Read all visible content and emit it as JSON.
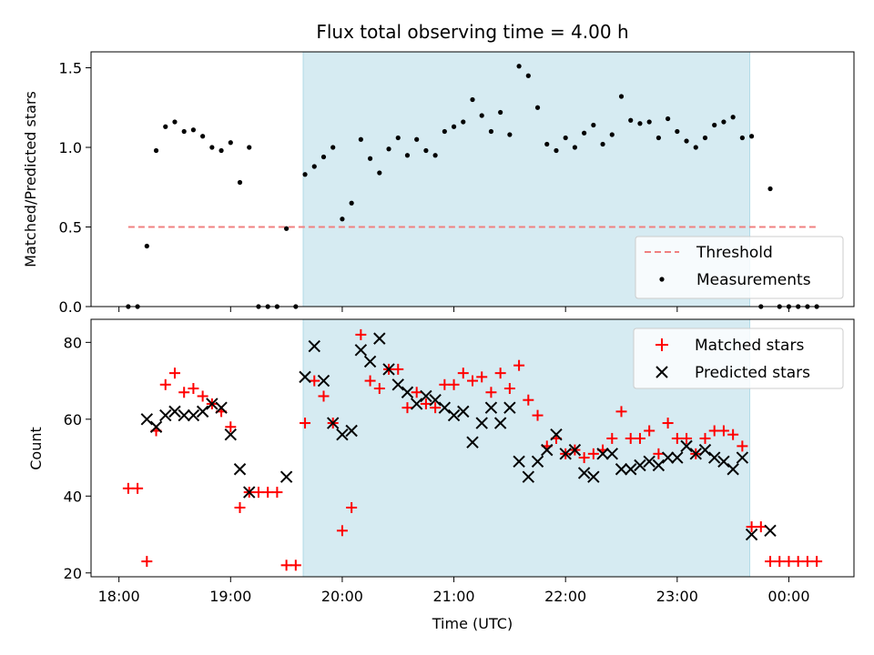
{
  "chart_data": [
    {
      "type": "scatter",
      "title": "Flux total observing time = 4.00 h",
      "xlabel": "",
      "ylabel": "Matched/Predicted stars",
      "ylim": [
        0,
        1.6
      ],
      "xlim": [
        "17:45",
        "00:35"
      ],
      "yticks": [
        0.0,
        0.5,
        1.0,
        1.5
      ],
      "ytick_labels": [
        "0.0",
        "0.5",
        "1.0",
        "1.5"
      ],
      "grid": false,
      "legend": "bottom-right",
      "shaded_region": {
        "start": "19:39",
        "end": "23:39",
        "color": "#add8e6"
      },
      "threshold": {
        "name": "Threshold",
        "value": 0.5,
        "start": "18:05",
        "end": "00:15",
        "color": "#f08080"
      },
      "series": [
        {
          "name": "Measurements",
          "color": "#000000",
          "marker": "dot",
          "x": [
            "18:05",
            "18:10",
            "18:15",
            "18:20",
            "18:25",
            "18:30",
            "18:35",
            "18:40",
            "18:45",
            "18:50",
            "18:55",
            "19:00",
            "19:05",
            "19:10",
            "19:15",
            "19:20",
            "19:25",
            "19:30",
            "19:35",
            "19:40",
            "19:45",
            "19:50",
            "19:55",
            "20:00",
            "20:05",
            "20:10",
            "20:15",
            "20:20",
            "20:25",
            "20:30",
            "20:35",
            "20:40",
            "20:45",
            "20:50",
            "20:55",
            "21:00",
            "21:05",
            "21:10",
            "21:15",
            "21:20",
            "21:25",
            "21:30",
            "21:35",
            "21:40",
            "21:45",
            "21:50",
            "21:55",
            "22:00",
            "22:05",
            "22:10",
            "22:15",
            "22:20",
            "22:25",
            "22:30",
            "22:35",
            "22:40",
            "22:45",
            "22:50",
            "22:55",
            "23:00",
            "23:05",
            "23:10",
            "23:15",
            "23:20",
            "23:25",
            "23:30",
            "23:35",
            "23:40",
            "23:45",
            "23:50",
            "23:55",
            "00:00",
            "00:05",
            "00:10",
            "00:15"
          ],
          "y": [
            0,
            0,
            0.38,
            0.98,
            1.13,
            1.16,
            1.1,
            1.11,
            1.07,
            1.0,
            0.98,
            1.03,
            0.78,
            1.0,
            0,
            0,
            0,
            0.49,
            0,
            0.83,
            0.88,
            0.94,
            1.0,
            0.55,
            0.65,
            1.05,
            0.93,
            0.84,
            0.99,
            1.06,
            0.95,
            1.05,
            0.98,
            0.95,
            1.1,
            1.13,
            1.16,
            1.3,
            1.2,
            1.1,
            1.22,
            1.08,
            1.51,
            1.45,
            1.25,
            1.02,
            0.98,
            1.06,
            1.0,
            1.09,
            1.14,
            1.02,
            1.08,
            1.32,
            1.17,
            1.15,
            1.16,
            1.06,
            1.18,
            1.1,
            1.04,
            1.0,
            1.06,
            1.14,
            1.16,
            1.19,
            1.06,
            1.07,
            0,
            0.74,
            0,
            0,
            0,
            0,
            0
          ]
        }
      ]
    },
    {
      "type": "scatter",
      "title": "",
      "xlabel": "Time (UTC)",
      "ylabel": "Count",
      "ylim": [
        19,
        86
      ],
      "xlim": [
        "17:45",
        "00:35"
      ],
      "xticks": [
        "18:00",
        "19:00",
        "20:00",
        "21:00",
        "22:00",
        "23:00",
        "00:00"
      ],
      "xtick_labels": [
        "18:00",
        "19:00",
        "20:00",
        "21:00",
        "22:00",
        "23:00",
        "00:00"
      ],
      "yticks": [
        20,
        40,
        60,
        80
      ],
      "ytick_labels": [
        "20",
        "40",
        "60",
        "80"
      ],
      "grid": false,
      "legend": "top-right",
      "shaded_region": {
        "start": "19:39",
        "end": "23:39",
        "color": "#add8e6"
      },
      "series": [
        {
          "name": "Matched stars",
          "color": "#ff0000",
          "marker": "plus",
          "x": [
            "18:05",
            "18:10",
            "18:15",
            "18:20",
            "18:25",
            "18:30",
            "18:35",
            "18:40",
            "18:45",
            "18:50",
            "18:55",
            "19:00",
            "19:05",
            "19:10",
            "19:15",
            "19:20",
            "19:25",
            "19:30",
            "19:35",
            "19:40",
            "19:45",
            "19:50",
            "19:55",
            "20:00",
            "20:05",
            "20:10",
            "20:15",
            "20:20",
            "20:25",
            "20:30",
            "20:35",
            "20:40",
            "20:45",
            "20:50",
            "20:55",
            "21:00",
            "21:05",
            "21:10",
            "21:15",
            "21:20",
            "21:25",
            "21:30",
            "21:35",
            "21:40",
            "21:45",
            "21:50",
            "21:55",
            "22:00",
            "22:05",
            "22:10",
            "22:15",
            "22:20",
            "22:25",
            "22:30",
            "22:35",
            "22:40",
            "22:45",
            "22:50",
            "22:55",
            "23:00",
            "23:05",
            "23:10",
            "23:15",
            "23:20",
            "23:25",
            "23:30",
            "23:35",
            "23:40",
            "23:45",
            "23:50",
            "23:55",
            "00:00",
            "00:05",
            "00:10",
            "00:15"
          ],
          "y": [
            42,
            42,
            23,
            57,
            69,
            72,
            67,
            68,
            66,
            64,
            62,
            58,
            37,
            41,
            41,
            41,
            41,
            22,
            22,
            59,
            70,
            66,
            59,
            31,
            37,
            82,
            70,
            68,
            73,
            73,
            63,
            67,
            64,
            63,
            69,
            69,
            72,
            70,
            71,
            67,
            72,
            68,
            74,
            65,
            61,
            53,
            55,
            51,
            52,
            50,
            51,
            52,
            55,
            62,
            55,
            55,
            57,
            51,
            59,
            55,
            55,
            51,
            55,
            57,
            57,
            56,
            53,
            32,
            32,
            23,
            23,
            23,
            23,
            23,
            23
          ]
        },
        {
          "name": "Predicted stars",
          "color": "#000000",
          "marker": "x",
          "x": [
            "18:15",
            "18:20",
            "18:25",
            "18:30",
            "18:35",
            "18:40",
            "18:45",
            "18:50",
            "18:55",
            "19:00",
            "19:05",
            "19:10",
            "19:30",
            "19:40",
            "19:45",
            "19:50",
            "19:55",
            "20:00",
            "20:05",
            "20:10",
            "20:15",
            "20:20",
            "20:25",
            "20:30",
            "20:35",
            "20:40",
            "20:45",
            "20:50",
            "20:55",
            "21:00",
            "21:05",
            "21:10",
            "21:15",
            "21:20",
            "21:25",
            "21:30",
            "21:35",
            "21:40",
            "21:45",
            "21:50",
            "21:55",
            "22:00",
            "22:05",
            "22:10",
            "22:15",
            "22:20",
            "22:25",
            "22:30",
            "22:35",
            "22:40",
            "22:45",
            "22:50",
            "22:55",
            "23:00",
            "23:05",
            "23:10",
            "23:15",
            "23:20",
            "23:25",
            "23:30",
            "23:35",
            "23:40",
            "23:50"
          ],
          "y": [
            60,
            58,
            61,
            62,
            61,
            61,
            62,
            64,
            63,
            56,
            47,
            41,
            45,
            71,
            79,
            70,
            59,
            56,
            57,
            78,
            75,
            81,
            73,
            69,
            67,
            64,
            66,
            65,
            63,
            61,
            62,
            54,
            59,
            63,
            59,
            63,
            49,
            45,
            49,
            52,
            56,
            51,
            52,
            46,
            45,
            51,
            51,
            47,
            47,
            48,
            49,
            48,
            50,
            50,
            53,
            51,
            52,
            50,
            49,
            47,
            50,
            30,
            31
          ]
        }
      ]
    }
  ]
}
